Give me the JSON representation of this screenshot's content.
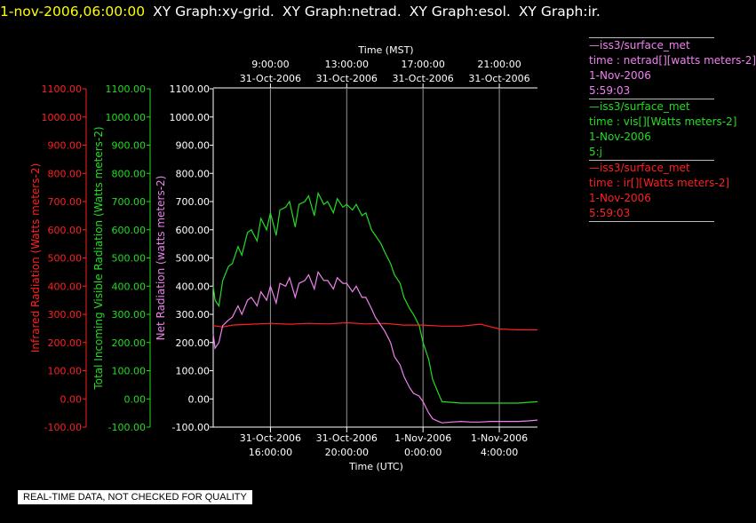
{
  "header": {
    "timestamp": "1-nov-2006,06:00:00",
    "titles": [
      "XY Graph:xy-grid.",
      "XY Graph:netrad.",
      "XY Graph:esol.",
      "XY Graph:ir."
    ]
  },
  "colors": {
    "ir": "#ff2020",
    "vis": "#22dd22",
    "netrad": "#ee82ee",
    "grid": "#c8c8c8",
    "axis": "#ffffff"
  },
  "legend": [
    {
      "line1": "—iss3/surface_met",
      "line2": "time : netrad[][watts meters-2]",
      "line3": "1-Nov-2006",
      "line4": "5:59:03",
      "color": "#ee82ee"
    },
    {
      "line1": "—iss3/surface_met",
      "line2": "time : vis[][Watts meters-2]",
      "line3": "1-Nov-2006",
      "line4": "5:j",
      "color": "#22dd22"
    },
    {
      "line1": "—iss3/surface_met",
      "line2": "time : ir[][Watts meters-2]",
      "line3": "1-Nov-2006",
      "line4": "5:59:03",
      "color": "#ff2020"
    }
  ],
  "quality_note": "REAL-TIME DATA, NOT CHECKED FOR QUALITY",
  "chart_data": {
    "type": "line",
    "x_unit": "hours UTC since 31-Oct-2006 00:00",
    "xlim": [
      13.0,
      30.0
    ],
    "top_axis": {
      "label": "Time (MST)",
      "ticks": [
        {
          "x": 16,
          "line1": "9:00:00",
          "line2": "31-Oct-2006"
        },
        {
          "x": 20,
          "line1": "13:00:00",
          "line2": "31-Oct-2006"
        },
        {
          "x": 24,
          "line1": "17:00:00",
          "line2": "31-Oct-2006"
        },
        {
          "x": 28,
          "line1": "21:00:00",
          "line2": "31-Oct-2006"
        }
      ]
    },
    "bottom_axis": {
      "label": "Time (UTC)",
      "ticks": [
        {
          "x": 16,
          "line1": "31-Oct-2006",
          "line2": "16:00:00"
        },
        {
          "x": 20,
          "line1": "31-Oct-2006",
          "line2": "20:00:00"
        },
        {
          "x": 24,
          "line1": "1-Nov-2006",
          "line2": "0:00:00"
        },
        {
          "x": 28,
          "line1": "1-Nov-2006",
          "line2": "4:00:00"
        }
      ]
    },
    "y_axes": [
      {
        "id": "ir",
        "label": "Infrared Radiation (Watts meters-2)",
        "ylim": [
          -100,
          1100
        ],
        "color": "#ff2020",
        "ticks": [
          "-100.00",
          "0.00",
          "100.00",
          "200.00",
          "300.00",
          "400.00",
          "500.00",
          "600.00",
          "700.00",
          "800.00",
          "900.00",
          "1000.00",
          "1100.00"
        ]
      },
      {
        "id": "vis",
        "label": "Total Incoming Visible Radiation (Watts meters-2)",
        "ylim": [
          -100,
          1100
        ],
        "color": "#22dd22",
        "ticks": [
          "-100.00",
          "0.00",
          "100.00",
          "200.00",
          "300.00",
          "400.00",
          "500.00",
          "600.00",
          "700.00",
          "800.00",
          "900.00",
          "1000.00",
          "1100.00"
        ]
      },
      {
        "id": "netrad",
        "label": "Net Radiation (watts meters-2)",
        "ylim": [
          -100,
          1100
        ],
        "color": "#ffffff",
        "ticks": [
          "-100.00",
          "0.00",
          "100.00",
          "200.00",
          "300.00",
          "400.00",
          "500.00",
          "600.00",
          "700.00",
          "800.00",
          "900.00",
          "1000.00",
          "1100.00"
        ]
      }
    ],
    "grid": true,
    "series": [
      {
        "id": "vis",
        "color": "#22dd22",
        "x": [
          13.0,
          13.1,
          13.3,
          13.5,
          13.8,
          14.0,
          14.3,
          14.5,
          14.8,
          15.0,
          15.3,
          15.5,
          15.8,
          16.0,
          16.3,
          16.5,
          16.8,
          17.0,
          17.3,
          17.5,
          17.8,
          18.0,
          18.3,
          18.5,
          18.8,
          19.0,
          19.3,
          19.5,
          19.8,
          20.0,
          20.3,
          20.5,
          20.8,
          21.0,
          21.3,
          21.5,
          21.8,
          22.0,
          22.3,
          22.5,
          22.8,
          23.0,
          23.3,
          23.5,
          23.8,
          24.0,
          24.3,
          24.5,
          24.8,
          25.0,
          25.5,
          26.0,
          26.5,
          27.0,
          27.5,
          28.0,
          28.5,
          29.0,
          29.5,
          30.0
        ],
        "y": [
          400,
          350,
          330,
          420,
          470,
          480,
          540,
          510,
          590,
          600,
          560,
          640,
          600,
          660,
          580,
          670,
          680,
          700,
          610,
          690,
          700,
          720,
          650,
          730,
          690,
          700,
          660,
          710,
          680,
          690,
          670,
          690,
          650,
          660,
          600,
          580,
          550,
          520,
          480,
          440,
          410,
          360,
          320,
          300,
          260,
          200,
          140,
          70,
          20,
          -10,
          -12,
          -15,
          -15,
          -15,
          -15,
          -15,
          -15,
          -15,
          -12,
          -10
        ]
      },
      {
        "id": "ir",
        "color": "#ff2020",
        "x": [
          13.0,
          13.5,
          14.0,
          15.0,
          16.0,
          17.0,
          18.0,
          19.0,
          20.0,
          21.0,
          22.0,
          23.0,
          24.0,
          25.0,
          26.0,
          27.0,
          28.0,
          29.0,
          30.0
        ],
        "y": [
          260,
          255,
          262,
          265,
          268,
          265,
          268,
          266,
          270,
          266,
          268,
          262,
          262,
          258,
          258,
          265,
          248,
          245,
          245
        ]
      },
      {
        "id": "netrad",
        "color": "#ee82ee",
        "x": [
          13.0,
          13.1,
          13.3,
          13.5,
          13.8,
          14.0,
          14.3,
          14.5,
          14.8,
          15.0,
          15.3,
          15.5,
          15.8,
          16.0,
          16.3,
          16.5,
          16.8,
          17.0,
          17.3,
          17.5,
          17.8,
          18.0,
          18.3,
          18.5,
          18.8,
          19.0,
          19.3,
          19.5,
          19.8,
          20.0,
          20.3,
          20.5,
          20.8,
          21.0,
          21.3,
          21.5,
          21.8,
          22.0,
          22.3,
          22.5,
          22.8,
          23.0,
          23.3,
          23.5,
          23.8,
          24.0,
          24.3,
          24.5,
          24.8,
          25.0,
          25.5,
          26.0,
          26.5,
          27.0,
          27.5,
          28.0,
          28.5,
          29.0,
          29.5,
          30.0
        ],
        "y": [
          230,
          180,
          200,
          260,
          280,
          290,
          330,
          300,
          350,
          360,
          330,
          380,
          350,
          400,
          340,
          410,
          400,
          430,
          360,
          410,
          420,
          440,
          390,
          450,
          420,
          420,
          390,
          430,
          410,
          410,
          380,
          400,
          360,
          360,
          320,
          290,
          260,
          240,
          200,
          150,
          120,
          80,
          40,
          20,
          10,
          -10,
          -50,
          -70,
          -80,
          -85,
          -82,
          -80,
          -82,
          -82,
          -80,
          -80,
          -80,
          -80,
          -78,
          -75
        ]
      }
    ]
  }
}
